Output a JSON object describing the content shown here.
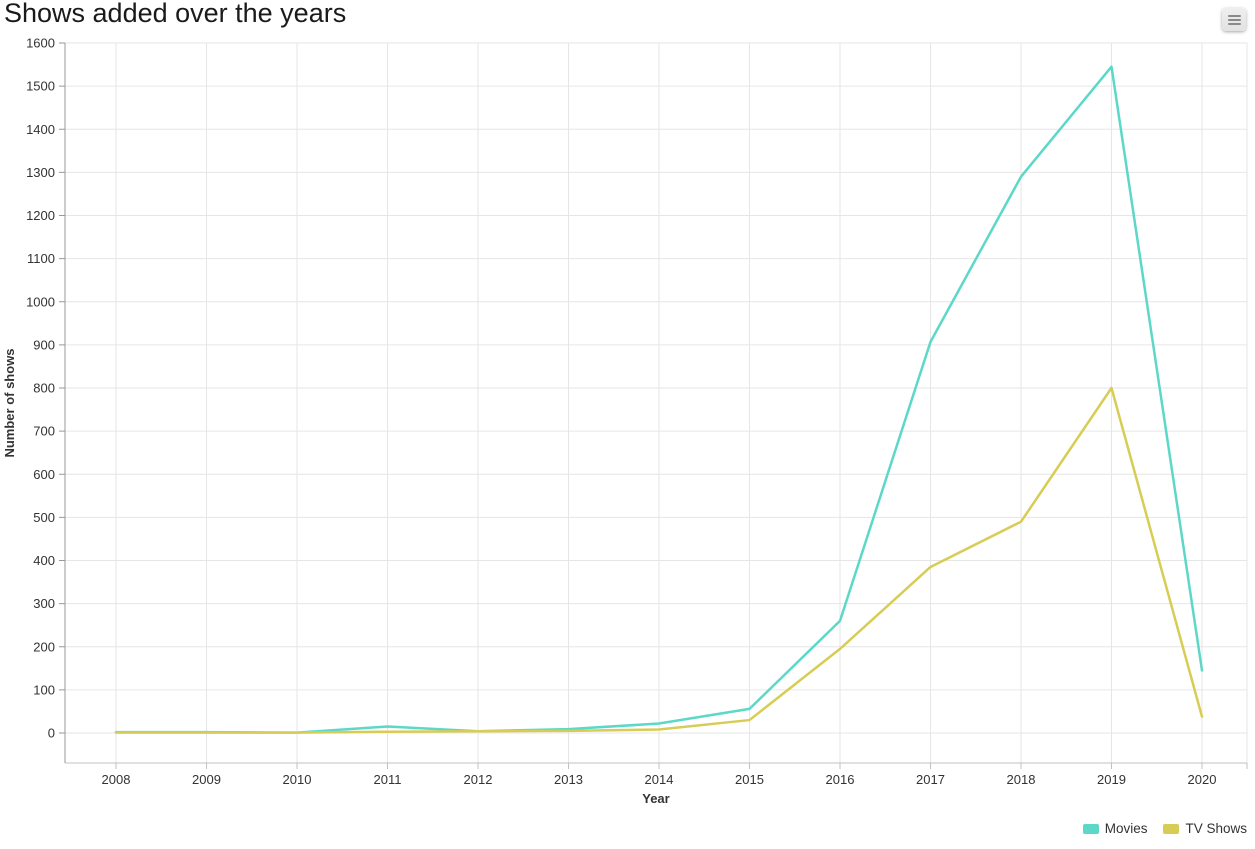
{
  "toolbar": {
    "menu_icon": "hamburger-icon"
  },
  "chart_data": {
    "type": "line",
    "title": "Shows added over the years",
    "xlabel": "Year",
    "ylabel": "Number of shows",
    "categories": [
      2008,
      2009,
      2010,
      2011,
      2012,
      2013,
      2014,
      2015,
      2016,
      2017,
      2018,
      2019,
      2020
    ],
    "series": [
      {
        "name": "Movies",
        "color": "#5cd8c9",
        "values": [
          2,
          2,
          1,
          15,
          4,
          9,
          22,
          56,
          260,
          907,
          1290,
          1545,
          145
        ]
      },
      {
        "name": "TV Shows",
        "color": "#d8cd54",
        "values": [
          1,
          1,
          1,
          3,
          4,
          5,
          8,
          30,
          195,
          385,
          490,
          800,
          38
        ]
      }
    ],
    "ylim": [
      0,
      1600
    ],
    "ytick_step": 100,
    "grid": true,
    "legend_position": "bottom-right",
    "grid_color": "#e6e6e6",
    "y_axis_line_color": "#999999",
    "x_axis_line_color": "#c0c0c0",
    "tick_label_color": "#333333"
  }
}
